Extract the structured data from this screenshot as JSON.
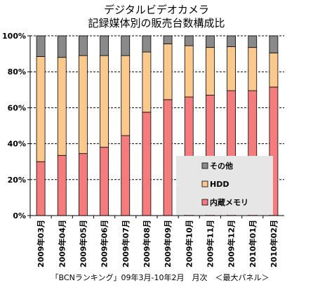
{
  "title_lines": [
    "デジタルビデオカメラ",
    "記録媒体別の販売台数構成比"
  ],
  "footer": "「BCNランキング」09年3月-10年2月　月次　＜最大パネル＞",
  "colors": {
    "内蔵メモリ": "#f47c7c",
    "HDD": "#fcc98c",
    "その他": "#8a8a8a"
  },
  "chart_data": {
    "type": "bar",
    "stacked": true,
    "percent": true,
    "title": "デジタルビデオカメラ 記録媒体別の販売台数構成比",
    "categories": [
      "2009年03月",
      "2009年04月",
      "2009年05月",
      "2009年06月",
      "2009年07月",
      "2009年08月",
      "2009年09月",
      "2009年10月",
      "2009年11月",
      "2009年12月",
      "2010年01月",
      "2010年02月"
    ],
    "series": [
      {
        "name": "内蔵メモリ",
        "values": [
          30,
          33.5,
          34.5,
          38,
          44.5,
          57.5,
          64.5,
          66,
          67,
          69.5,
          69.5,
          71.5
        ]
      },
      {
        "name": "HDD",
        "values": [
          58.5,
          54.5,
          54.5,
          51,
          44.5,
          33.5,
          31,
          28.5,
          26.5,
          24.5,
          24,
          19
        ]
      },
      {
        "name": "その他",
        "values": [
          11.5,
          12,
          11,
          11,
          11,
          9,
          4.5,
          5.5,
          6.5,
          6,
          6.5,
          9.5
        ]
      }
    ],
    "legend_order": [
      "その他",
      "HDD",
      "内蔵メモリ"
    ],
    "legend_placement": "bottom-right",
    "yticks": [
      "0%",
      "20%",
      "40%",
      "60%",
      "80%",
      "100%"
    ],
    "ylim": [
      0,
      100
    ],
    "grid": true
  }
}
